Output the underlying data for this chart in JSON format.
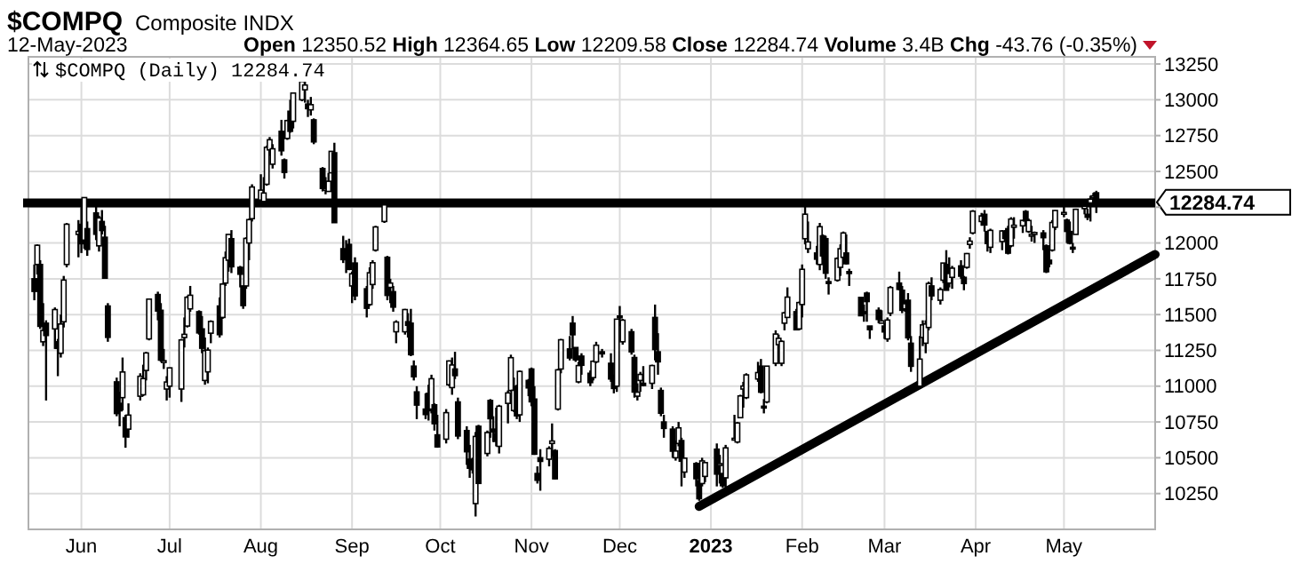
{
  "chart_data": {
    "type": "candlestick",
    "title": "$COMPQ",
    "subtitle": "Composite INDX",
    "xlim": [
      "2022-05-14",
      "2023-06-01"
    ],
    "xticks": [
      {
        "value": "2022-06-01",
        "label": "Jun"
      },
      {
        "value": "2022-07-01",
        "label": "Jul"
      },
      {
        "value": "2022-08-01",
        "label": "Aug"
      },
      {
        "value": "2022-09-01",
        "label": "Sep"
      },
      {
        "value": "2022-10-01",
        "label": "Oct"
      },
      {
        "value": "2022-11-01",
        "label": "Nov"
      },
      {
        "value": "2022-12-01",
        "label": "Dec"
      },
      {
        "value": "2023-01-01",
        "label": "2023"
      },
      {
        "value": "2023-02-01",
        "label": "Feb"
      },
      {
        "value": "2023-03-01",
        "label": "Mar"
      },
      {
        "value": "2023-04-01",
        "label": "Apr"
      },
      {
        "value": "2023-05-01",
        "label": "May"
      }
    ],
    "ylim": [
      10000,
      13300
    ],
    "yticks": [
      10250,
      10500,
      10750,
      11000,
      11250,
      11500,
      11750,
      12000,
      {
        "value": 12250,
        "label": null
      },
      12500,
      12750,
      13000,
      13250
    ],
    "grid": true,
    "legend": "top left",
    "ref_lines": [
      {
        "axis": "y",
        "value": 12280,
        "color": "#000000"
      }
    ],
    "annotations": [
      "12-May-2023",
      "Open 12350.52 High 12364.65 Low 12209.58 Close 12284.74 Volume 3.4B Chg -43.76 (-0.35%)",
      "12284.74"
    ],
    "series": [
      {
        "name": "$COMPQ (Daily) 12284.74",
        "color": "#000000",
        "x": [
          "2022-05-16",
          "2022-05-17",
          "2022-05-18",
          "2022-05-19",
          "2022-05-20",
          "2022-05-23",
          "2022-05-24",
          "2022-05-25",
          "2022-05-26",
          "2022-05-27",
          "2022-05-31",
          "2022-06-01",
          "2022-06-02",
          "2022-06-03",
          "2022-06-06",
          "2022-06-07",
          "2022-06-08",
          "2022-06-09",
          "2022-06-10",
          "2022-06-13",
          "2022-06-14",
          "2022-06-15",
          "2022-06-16",
          "2022-06-17",
          "2022-06-21",
          "2022-06-22",
          "2022-06-23",
          "2022-06-24",
          "2022-06-27",
          "2022-06-28",
          "2022-06-29",
          "2022-06-30",
          "2022-07-01",
          "2022-07-05",
          "2022-07-06",
          "2022-07-07",
          "2022-07-08",
          "2022-07-11",
          "2022-07-12",
          "2022-07-13",
          "2022-07-14",
          "2022-07-15",
          "2022-07-18",
          "2022-07-19",
          "2022-07-20",
          "2022-07-21",
          "2022-07-22",
          "2022-07-25",
          "2022-07-26",
          "2022-07-27",
          "2022-07-28",
          "2022-07-29",
          "2022-08-01",
          "2022-08-02",
          "2022-08-03",
          "2022-08-04",
          "2022-08-05",
          "2022-08-08",
          "2022-08-09",
          "2022-08-10",
          "2022-08-11",
          "2022-08-12",
          "2022-08-15",
          "2022-08-16",
          "2022-08-17",
          "2022-08-18",
          "2022-08-19",
          "2022-08-22",
          "2022-08-23",
          "2022-08-24",
          "2022-08-25",
          "2022-08-26",
          "2022-08-29",
          "2022-08-30",
          "2022-08-31",
          "2022-09-01",
          "2022-09-02",
          "2022-09-06",
          "2022-09-07",
          "2022-09-08",
          "2022-09-09",
          "2022-09-12",
          "2022-09-13",
          "2022-09-14",
          "2022-09-15",
          "2022-09-16",
          "2022-09-19",
          "2022-09-20",
          "2022-09-21",
          "2022-09-22",
          "2022-09-23",
          "2022-09-26",
          "2022-09-27",
          "2022-09-28",
          "2022-09-29",
          "2022-09-30",
          "2022-10-03",
          "2022-10-04",
          "2022-10-05",
          "2022-10-06",
          "2022-10-07",
          "2022-10-10",
          "2022-10-11",
          "2022-10-12",
          "2022-10-13",
          "2022-10-14",
          "2022-10-17",
          "2022-10-18",
          "2022-10-19",
          "2022-10-20",
          "2022-10-21",
          "2022-10-24",
          "2022-10-25",
          "2022-10-26",
          "2022-10-27",
          "2022-10-28",
          "2022-10-31",
          "2022-11-01",
          "2022-11-02",
          "2022-11-03",
          "2022-11-04",
          "2022-11-07",
          "2022-11-08",
          "2022-11-09",
          "2022-11-10",
          "2022-11-11",
          "2022-11-14",
          "2022-11-15",
          "2022-11-16",
          "2022-11-17",
          "2022-11-18",
          "2022-11-21",
          "2022-11-22",
          "2022-11-23",
          "2022-11-25",
          "2022-11-28",
          "2022-11-29",
          "2022-11-30",
          "2022-12-01",
          "2022-12-02",
          "2022-12-05",
          "2022-12-06",
          "2022-12-07",
          "2022-12-08",
          "2022-12-09",
          "2022-12-12",
          "2022-12-13",
          "2022-12-14",
          "2022-12-15",
          "2022-12-16",
          "2022-12-19",
          "2022-12-20",
          "2022-12-21",
          "2022-12-22",
          "2022-12-23",
          "2022-12-27",
          "2022-12-28",
          "2022-12-29",
          "2022-12-30",
          "2023-01-03",
          "2023-01-04",
          "2023-01-05",
          "2023-01-06",
          "2023-01-09",
          "2023-01-10",
          "2023-01-11",
          "2023-01-12",
          "2023-01-13",
          "2023-01-17",
          "2023-01-18",
          "2023-01-19",
          "2023-01-20",
          "2023-01-23",
          "2023-01-24",
          "2023-01-25",
          "2023-01-26",
          "2023-01-27",
          "2023-01-30",
          "2023-01-31",
          "2023-02-01",
          "2023-02-02",
          "2023-02-03",
          "2023-02-06",
          "2023-02-07",
          "2023-02-08",
          "2023-02-09",
          "2023-02-10",
          "2023-02-13",
          "2023-02-14",
          "2023-02-15",
          "2023-02-16",
          "2023-02-17",
          "2023-02-21",
          "2023-02-22",
          "2023-02-23",
          "2023-02-24",
          "2023-02-27",
          "2023-02-28",
          "2023-03-01",
          "2023-03-02",
          "2023-03-03",
          "2023-03-06",
          "2023-03-07",
          "2023-03-08",
          "2023-03-09",
          "2023-03-10",
          "2023-03-13",
          "2023-03-14",
          "2023-03-15",
          "2023-03-16",
          "2023-03-17",
          "2023-03-20",
          "2023-03-21",
          "2023-03-22",
          "2023-03-23",
          "2023-03-24",
          "2023-03-27",
          "2023-03-28",
          "2023-03-29",
          "2023-03-30",
          "2023-03-31",
          "2023-04-03",
          "2023-04-04",
          "2023-04-05",
          "2023-04-06",
          "2023-04-10",
          "2023-04-11",
          "2023-04-12",
          "2023-04-13",
          "2023-04-14",
          "2023-04-17",
          "2023-04-18",
          "2023-04-19",
          "2023-04-20",
          "2023-04-21",
          "2023-04-24",
          "2023-04-25",
          "2023-04-26",
          "2023-04-27",
          "2023-04-28",
          "2023-05-01",
          "2023-05-02",
          "2023-05-03",
          "2023-05-04",
          "2023-05-05",
          "2023-05-08",
          "2023-05-09",
          "2023-05-10",
          "2023-05-11",
          "2023-05-12"
        ],
        "ohlc": [
          [
            11750,
            11850,
            11600,
            11662
          ],
          [
            11850,
            11990,
            11780,
            11984
          ],
          [
            11850,
            11880,
            11400,
            11418
          ],
          [
            11310,
            11580,
            11280,
            11389
          ],
          [
            11440,
            11460,
            10900,
            11354
          ],
          [
            11400,
            11550,
            11260,
            11535
          ],
          [
            11310,
            11330,
            11070,
            11264
          ],
          [
            11230,
            11500,
            11200,
            11434
          ],
          [
            11450,
            11770,
            11410,
            11741
          ],
          [
            11850,
            12140,
            11830,
            12131
          ],
          [
            12060,
            12160,
            11900,
            12081
          ],
          [
            12130,
            12250,
            11930,
            11995
          ],
          [
            12020,
            12320,
            11960,
            12317
          ],
          [
            12100,
            12150,
            11910,
            11955
          ],
          [
            12210,
            12260,
            12020,
            12061
          ],
          [
            11980,
            12190,
            11940,
            12175
          ],
          [
            12150,
            12230,
            12060,
            12087
          ],
          [
            12040,
            12120,
            11750,
            11754
          ],
          [
            11560,
            11580,
            11310,
            11341
          ],
          [
            11030,
            11060,
            10790,
            10809
          ],
          [
            10880,
            10960,
            10720,
            10828
          ],
          [
            10920,
            11200,
            10830,
            11099
          ],
          [
            10780,
            10800,
            10570,
            10646
          ],
          [
            10700,
            10880,
            10640,
            10798
          ],
          [
            10930,
            11090,
            10900,
            11069
          ],
          [
            10940,
            11150,
            10930,
            11053
          ],
          [
            11110,
            11240,
            11040,
            11232
          ],
          [
            11330,
            11610,
            11320,
            11608
          ],
          [
            11640,
            11660,
            11460,
            11525
          ],
          [
            11530,
            11580,
            11170,
            11182
          ],
          [
            11170,
            11260,
            11120,
            11178
          ],
          [
            10980,
            11070,
            10900,
            11029
          ],
          [
            11000,
            11130,
            10920,
            11128
          ],
          [
            10980,
            11330,
            10890,
            11323
          ],
          [
            11340,
            11480,
            11270,
            11362
          ],
          [
            11420,
            11630,
            11410,
            11621
          ],
          [
            11540,
            11700,
            11520,
            11635
          ],
          [
            11520,
            11530,
            11360,
            11372
          ],
          [
            11400,
            11490,
            11230,
            11265
          ],
          [
            11040,
            11340,
            11010,
            11248
          ],
          [
            11100,
            11270,
            11020,
            11252
          ],
          [
            11370,
            11460,
            11300,
            11452
          ],
          [
            11560,
            11620,
            11340,
            11360
          ],
          [
            11480,
            11720,
            11470,
            11713
          ],
          [
            11720,
            11940,
            11700,
            11897
          ],
          [
            11880,
            12060,
            11800,
            12060
          ],
          [
            12030,
            12090,
            11790,
            11834
          ],
          [
            11830,
            11840,
            11690,
            11782
          ],
          [
            11700,
            11700,
            11540,
            11563
          ],
          [
            11700,
            12040,
            11680,
            12032
          ],
          [
            12000,
            12170,
            11880,
            12163
          ],
          [
            12170,
            12410,
            12150,
            12391
          ],
          [
            12300,
            12480,
            12270,
            12369
          ],
          [
            12290,
            12460,
            12270,
            12349
          ],
          [
            12410,
            12680,
            12400,
            12668
          ],
          [
            12650,
            12740,
            12610,
            12721
          ],
          [
            12550,
            12690,
            12520,
            12658
          ],
          [
            12780,
            12860,
            12610,
            12644
          ],
          [
            12580,
            12590,
            12450,
            12493
          ],
          [
            12730,
            12860,
            12720,
            12855
          ],
          [
            12920,
            13000,
            12770,
            12780
          ],
          [
            12850,
            13050,
            12800,
            13047
          ],
          [
            13000,
            13150,
            12990,
            13128
          ],
          [
            13070,
            13150,
            12980,
            13103
          ],
          [
            12970,
            13000,
            12880,
            12938
          ],
          [
            12930,
            13020,
            12890,
            12966
          ],
          [
            12860,
            12870,
            12690,
            12706
          ],
          [
            12520,
            12530,
            12360,
            12381
          ],
          [
            12370,
            12460,
            12340,
            12381
          ],
          [
            12360,
            12490,
            12360,
            12431
          ],
          [
            12490,
            12640,
            12490,
            12640
          ],
          [
            12630,
            12700,
            12140,
            12142
          ],
          [
            11960,
            12050,
            11860,
            11884
          ],
          [
            11940,
            12020,
            11790,
            11884
          ],
          [
            11990,
            12030,
            11810,
            11816
          ],
          [
            11700,
            11800,
            11580,
            11785
          ],
          [
            11860,
            11900,
            11600,
            11631
          ],
          [
            11680,
            11700,
            11480,
            11544
          ],
          [
            11570,
            11830,
            11560,
            11792
          ],
          [
            11710,
            11880,
            11680,
            11862
          ],
          [
            11950,
            12120,
            11940,
            12112
          ],
          [
            12150,
            12270,
            12140,
            12266
          ],
          [
            11900,
            11910,
            11600,
            11634
          ],
          [
            11690,
            11750,
            11580,
            11720
          ],
          [
            11660,
            11700,
            11520,
            11552
          ],
          [
            11380,
            11460,
            11300,
            11448
          ],
          [
            11380,
            11540,
            11360,
            11535
          ],
          [
            11450,
            11510,
            11340,
            11425
          ],
          [
            11440,
            11540,
            11210,
            11220
          ],
          [
            11140,
            11180,
            11040,
            11066
          ],
          [
            10960,
            11000,
            10770,
            10868
          ],
          [
            10840,
            10950,
            10770,
            10802
          ],
          [
            10950,
            11010,
            10760,
            10829
          ],
          [
            10840,
            11080,
            10810,
            11052
          ],
          [
            10870,
            10880,
            10690,
            10738
          ],
          [
            10660,
            10800,
            10570,
            10576
          ],
          [
            10630,
            10840,
            10600,
            10815
          ],
          [
            11010,
            11180,
            11000,
            11176
          ],
          [
            10990,
            11200,
            10940,
            11148
          ],
          [
            11120,
            11240,
            11050,
            11074
          ],
          [
            10890,
            10920,
            10630,
            10652
          ],
          [
            10690,
            10720,
            10450,
            10542
          ],
          [
            10490,
            10590,
            10360,
            10427
          ],
          [
            10440,
            10500,
            10390,
            10417
          ],
          [
            10180,
            10680,
            10090,
            10649
          ],
          [
            10720,
            10730,
            10320,
            10321
          ],
          [
            10530,
            10690,
            10510,
            10676
          ],
          [
            10900,
            10910,
            10640,
            10773
          ],
          [
            10700,
            10790,
            10610,
            10681
          ],
          [
            10670,
            10850,
            10580,
            10615
          ],
          [
            10580,
            10870,
            10530,
            10860
          ],
          [
            10880,
            10970,
            10740,
            10953
          ],
          [
            10970,
            11220,
            10960,
            11199
          ],
          [
            10830,
            11060,
            10820,
            10971
          ],
          [
            11000,
            11010,
            10770,
            10793
          ],
          [
            10800,
            11110,
            10750,
            11103
          ],
          [
            11040,
            11050,
            10930,
            10988
          ],
          [
            11120,
            11130,
            10860,
            10891
          ],
          [
            10910,
            11000,
            10520,
            10525
          ],
          [
            10390,
            10440,
            10320,
            10343
          ],
          [
            10500,
            10560,
            10270,
            10475
          ],
          [
            10490,
            10580,
            10440,
            10565
          ],
          [
            10600,
            10740,
            10510,
            10617
          ],
          [
            10550,
            10560,
            10350,
            10353
          ],
          [
            10840,
            11120,
            10830,
            11114
          ],
          [
            11120,
            11330,
            11090,
            11324
          ],
          [
            11260,
            11350,
            11180,
            11197
          ],
          [
            11440,
            11490,
            11260,
            11359
          ],
          [
            11270,
            11270,
            11170,
            11184
          ],
          [
            11030,
            11170,
            11020,
            11144
          ],
          [
            11210,
            11230,
            11080,
            11146
          ],
          [
            11090,
            11110,
            11000,
            11025
          ],
          [
            11060,
            11180,
            11040,
            11174
          ],
          [
            11170,
            11310,
            11160,
            11286
          ],
          [
            11240,
            11260,
            11200,
            11226
          ],
          [
            11160,
            11230,
            11030,
            11050
          ],
          [
            11050,
            11080,
            10950,
            10984
          ],
          [
            11000,
            11470,
            10960,
            11468
          ],
          [
            11490,
            11560,
            11420,
            11482
          ],
          [
            11310,
            11470,
            11290,
            11461
          ],
          [
            11380,
            11400,
            11220,
            11240
          ],
          [
            11200,
            11220,
            10920,
            10959
          ],
          [
            10930,
            11020,
            10900,
            10958
          ],
          [
            11040,
            11100,
            10960,
            11082
          ],
          [
            11020,
            11140,
            11000,
            11005
          ],
          [
            11020,
            11150,
            10980,
            11144
          ],
          [
            11480,
            11570,
            11180,
            11256
          ],
          [
            11240,
            11370,
            11080,
            11170
          ],
          [
            10970,
            10990,
            10790,
            10811
          ],
          [
            10750,
            10800,
            10640,
            10705
          ],
          [
            10700,
            10720,
            10500,
            10546
          ],
          [
            10500,
            10620,
            10480,
            10547
          ],
          [
            10600,
            10750,
            10580,
            10709
          ],
          [
            10620,
            10640,
            10300,
            10476
          ],
          [
            10400,
            10500,
            10360,
            10497
          ],
          [
            10460,
            10470,
            10300,
            10354
          ],
          [
            10340,
            10420,
            10200,
            10214
          ],
          [
            10320,
            10500,
            10300,
            10478
          ],
          [
            10370,
            10470,
            10330,
            10466
          ],
          [
            10560,
            10600,
            10300,
            10386
          ],
          [
            10450,
            10520,
            10320,
            10459
          ],
          [
            10390,
            10390,
            10290,
            10305
          ],
          [
            10360,
            10590,
            10270,
            10569
          ],
          [
            10630,
            10800,
            10620,
            10636
          ],
          [
            10610,
            10750,
            10600,
            10743
          ],
          [
            10780,
            10940,
            10780,
            10932
          ],
          [
            10980,
            11030,
            10850,
            11001
          ],
          [
            10920,
            11090,
            10910,
            11079
          ],
          [
            11050,
            11170,
            11030,
            11095
          ],
          [
            11140,
            11190,
            10950,
            10958
          ],
          [
            10860,
            10910,
            10810,
            10852
          ],
          [
            10890,
            11140,
            10880,
            11140
          ],
          [
            11160,
            11390,
            11140,
            11364
          ],
          [
            11290,
            11360,
            11270,
            11334
          ],
          [
            11160,
            11320,
            11140,
            11313
          ],
          [
            11440,
            11520,
            11390,
            11512
          ],
          [
            11480,
            11690,
            11480,
            11622
          ],
          [
            11520,
            11540,
            11390,
            11394
          ],
          [
            11400,
            11590,
            11390,
            11584
          ],
          [
            11570,
            11850,
            11480,
            11816
          ],
          [
            12030,
            12270,
            11990,
            12201
          ],
          [
            11960,
            12150,
            11930,
            12007
          ],
          [
            11930,
            11980,
            11850,
            11887
          ],
          [
            11850,
            12140,
            11810,
            12114
          ],
          [
            12050,
            12060,
            11890,
            11910
          ],
          [
            12030,
            12050,
            11750,
            11789
          ],
          [
            11730,
            11760,
            11640,
            11718
          ],
          [
            11740,
            11900,
            11730,
            11892
          ],
          [
            11830,
            11990,
            11770,
            11960
          ],
          [
            11900,
            12080,
            11890,
            12070
          ],
          [
            11930,
            12060,
            11850,
            11855
          ],
          [
            11800,
            11820,
            11700,
            11787
          ],
          [
            11620,
            11620,
            11490,
            11492
          ],
          [
            11520,
            11570,
            11450,
            11507
          ],
          [
            11650,
            11660,
            11450,
            11591
          ],
          [
            11420,
            11420,
            11330,
            11395
          ],
          [
            11530,
            11550,
            11440,
            11466
          ],
          [
            11440,
            11530,
            11440,
            11456
          ],
          [
            11420,
            11440,
            11330,
            11379
          ],
          [
            11330,
            11480,
            11310,
            11462
          ],
          [
            11510,
            11700,
            11490,
            11689
          ],
          [
            11720,
            11800,
            11670,
            11676
          ],
          [
            11670,
            11700,
            11510,
            11530
          ],
          [
            11540,
            11600,
            11520,
            11576
          ],
          [
            11600,
            11650,
            11320,
            11338
          ],
          [
            11300,
            11350,
            11100,
            11139
          ],
          [
            11000,
            11350,
            10980,
            11189
          ],
          [
            11340,
            11460,
            11280,
            11428
          ],
          [
            11300,
            11460,
            11230,
            11434
          ],
          [
            11410,
            11730,
            11390,
            11717
          ],
          [
            11700,
            11760,
            11600,
            11631
          ],
          [
            11600,
            11690,
            11570,
            11675
          ],
          [
            11740,
            11860,
            11720,
            11860
          ],
          [
            11850,
            11950,
            11670,
            11670
          ],
          [
            11720,
            11900,
            11690,
            11787
          ],
          [
            11760,
            11840,
            11680,
            11824
          ],
          [
            11840,
            11880,
            11750,
            11768
          ],
          [
            11760,
            11770,
            11670,
            11717
          ],
          [
            11830,
            11930,
            11820,
            11926
          ],
          [
            11990,
            12040,
            11960,
            12013
          ],
          [
            12070,
            12230,
            12060,
            12222
          ],
          [
            12150,
            12210,
            12120,
            12189
          ],
          [
            12200,
            12230,
            12080,
            12126
          ],
          [
            12080,
            12080,
            11940,
            11996
          ],
          [
            11970,
            12100,
            11930,
            12088
          ],
          [
            12010,
            12090,
            11950,
            12084
          ],
          [
            12080,
            12090,
            12020,
            12032
          ],
          [
            12100,
            12120,
            11920,
            11929
          ],
          [
            11980,
            12180,
            11970,
            12167
          ],
          [
            12110,
            12180,
            12030,
            12124
          ],
          [
            12120,
            12160,
            12070,
            12158
          ],
          [
            12220,
            12230,
            12120,
            12154
          ],
          [
            12080,
            12170,
            12070,
            12157
          ],
          [
            12060,
            12120,
            12010,
            12060
          ],
          [
            12060,
            12080,
            12000,
            12073
          ],
          [
            12070,
            12090,
            11950,
            12037
          ],
          [
            11980,
            11990,
            11790,
            11799
          ],
          [
            11880,
            11960,
            11830,
            11855
          ],
          [
            11950,
            12160,
            11940,
            12143
          ],
          [
            12110,
            12230,
            12090,
            12227
          ],
          [
            12210,
            12260,
            12180,
            12213
          ],
          [
            12160,
            12170,
            12000,
            12081
          ],
          [
            12080,
            12150,
            11990,
            11998
          ],
          [
            11970,
            12000,
            11930,
            11966
          ],
          [
            12060,
            12240,
            12060,
            12235
          ],
          [
            12240,
            12270,
            12200,
            12256
          ],
          [
            12200,
            12240,
            12160,
            12180
          ],
          [
            12280,
            12330,
            12150,
            12306
          ],
          [
            12320,
            12350,
            12270,
            12329
          ],
          [
            12350.52,
            12364.65,
            12209.58,
            12284.74
          ]
        ]
      },
      {
        "type": "line",
        "color": "#000000",
        "x": [
          "2022-12-28",
          "2023-06-01"
        ],
        "values": [
          10160,
          11920
        ]
      }
    ]
  }
}
